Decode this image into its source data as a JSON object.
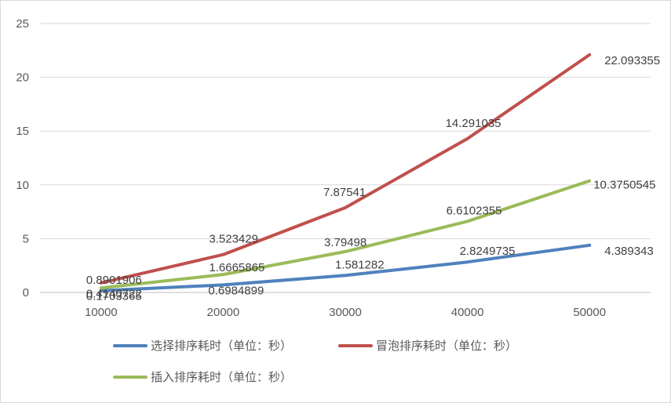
{
  "chart_data": {
    "type": "line",
    "title": "",
    "xlabel": "",
    "ylabel": "",
    "categories": [
      "10000",
      "20000",
      "30000",
      "40000",
      "50000"
    ],
    "ylim": [
      0,
      25
    ],
    "yticks": [
      "0",
      "5",
      "10",
      "15",
      "20",
      "25"
    ],
    "grid": "horizontal",
    "legend_position": "bottom",
    "series": [
      {
        "name": "选择排序耗时（单位：秒）",
        "color": "#4f81bd",
        "values": [
          0.1703365,
          0.6984899,
          1.581282,
          2.8249735,
          4.389343
        ],
        "labels": [
          "0.1703365",
          "0.6984899",
          "1.581282",
          "2.8249735",
          "4.389343"
        ]
      },
      {
        "name": "冒泡排序耗时（单位：秒）",
        "color": "#c0504d",
        "values": [
          0.8901906,
          3.523429,
          7.87541,
          14.291035,
          22.093355
        ],
        "labels": [
          "0.8901906",
          "3.523429",
          "7.87541",
          "14.291035",
          "22.093355"
        ]
      },
      {
        "name": "插入排序耗时（单位：秒）",
        "color": "#9bbb59",
        "values": [
          0.4140722,
          1.6665865,
          3.79498,
          6.6102355,
          10.3750545
        ],
        "labels": [
          "0.4140722",
          "1.6665865",
          "3.79498",
          "6.6102355",
          "10.3750545"
        ]
      }
    ]
  }
}
